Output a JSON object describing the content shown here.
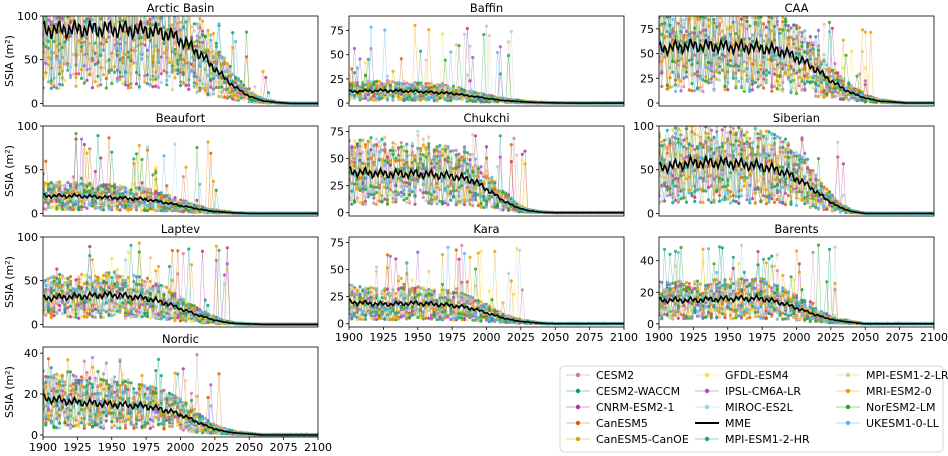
{
  "colors": {
    "CESM2": "#cc79a7",
    "CESM2-WACCM": "#009e73",
    "CNRM-ESM2-1": "#b0308a",
    "CanESM5": "#d55e00",
    "CanESM5-CanOE": "#e69f00",
    "GFDL-ESM4": "#f0e442",
    "IPSL-CM6A-LR": "#a050c8",
    "MIROC-ES2L": "#9fd0e0",
    "MME": "#000000",
    "MPI-ESM1-2-HR": "#17a08a",
    "MPI-ESM1-2-LR": "#e8c090",
    "MRI-ESM2-0": "#e69f00",
    "NorESM2-LM": "#2ca02c",
    "UKESM1-0-LL": "#56b4e9"
  },
  "chart_data": [
    {
      "type": "line",
      "title": "Arctic Basin",
      "ylabel": "SSIA (m²)",
      "xlim": [
        1900,
        2100
      ],
      "ylim": [
        -3,
        100
      ],
      "yticks": [
        0,
        50,
        100
      ],
      "xticks": [],
      "mme": {
        "x": [
          1900,
          1925,
          1950,
          1975,
          1990,
          2000,
          2010,
          2020,
          2030,
          2040,
          2050,
          2060,
          2070,
          2080,
          2100
        ],
        "y": [
          84,
          85,
          85,
          84,
          80,
          73,
          62,
          48,
          32,
          18,
          8,
          3,
          1,
          0,
          0
        ]
      }
    },
    {
      "type": "line",
      "title": "Baffin",
      "ylabel": "",
      "xlim": [
        1900,
        2100
      ],
      "ylim": [
        -3,
        90
      ],
      "yticks": [
        0,
        25,
        50,
        75
      ],
      "xticks": [],
      "mme": {
        "x": [
          1900,
          1925,
          1950,
          1975,
          1990,
          2000,
          2010,
          2020,
          2030,
          2040,
          2060,
          2100
        ],
        "y": [
          12,
          13,
          12,
          10,
          7,
          5,
          3,
          2,
          1,
          0.5,
          0,
          0
        ]
      }
    },
    {
      "type": "line",
      "title": "CAA",
      "ylabel": "",
      "xlim": [
        1900,
        2100
      ],
      "ylim": [
        -3,
        88
      ],
      "yticks": [
        0,
        25,
        50,
        75
      ],
      "xticks": [],
      "mme": {
        "x": [
          1900,
          1925,
          1950,
          1975,
          1990,
          2000,
          2010,
          2020,
          2030,
          2040,
          2050,
          2060,
          2070,
          2080,
          2100
        ],
        "y": [
          55,
          58,
          57,
          56,
          52,
          46,
          38,
          28,
          18,
          10,
          5,
          2,
          1,
          0,
          0
        ]
      }
    },
    {
      "type": "line",
      "title": "Beaufort",
      "ylabel": "SSIA (m²)",
      "xlim": [
        1900,
        2100
      ],
      "ylim": [
        -3,
        100
      ],
      "yticks": [
        0,
        50,
        100
      ],
      "xticks": [],
      "mme": {
        "x": [
          1900,
          1925,
          1950,
          1975,
          1990,
          2000,
          2010,
          2020,
          2030,
          2040,
          2050,
          2100
        ],
        "y": [
          20,
          20,
          18,
          16,
          12,
          9,
          6,
          3,
          1.5,
          0.5,
          0,
          0
        ]
      }
    },
    {
      "type": "line",
      "title": "Chukchi",
      "ylabel": "",
      "xlim": [
        1900,
        2100
      ],
      "ylim": [
        -3,
        80
      ],
      "yticks": [
        0,
        25,
        50,
        75
      ],
      "xticks": [],
      "mme": {
        "x": [
          1900,
          1925,
          1950,
          1975,
          1990,
          2000,
          2010,
          2020,
          2030,
          2040,
          2050,
          2100
        ],
        "y": [
          38,
          36,
          36,
          34,
          30,
          22,
          13,
          6,
          2,
          0.5,
          0,
          0
        ]
      }
    },
    {
      "type": "line",
      "title": "Siberian",
      "ylabel": "",
      "xlim": [
        1900,
        2100
      ],
      "ylim": [
        -3,
        100
      ],
      "yticks": [
        0,
        50,
        100
      ],
      "xticks": [],
      "mme": {
        "x": [
          1900,
          1925,
          1950,
          1975,
          1990,
          2000,
          2010,
          2020,
          2030,
          2040,
          2050,
          2100
        ],
        "y": [
          52,
          58,
          58,
          54,
          48,
          40,
          30,
          18,
          8,
          2,
          0,
          0
        ]
      }
    },
    {
      "type": "line",
      "title": "Laptev",
      "ylabel": "SSIA (m²)",
      "xlim": [
        1900,
        2100
      ],
      "ylim": [
        -3,
        100
      ],
      "yticks": [
        0,
        50,
        100
      ],
      "xticks": [],
      "mme": {
        "x": [
          1900,
          1925,
          1950,
          1975,
          1990,
          2000,
          2010,
          2020,
          2030,
          2040,
          2050,
          2060,
          2100
        ],
        "y": [
          30,
          32,
          34,
          30,
          24,
          18,
          12,
          7,
          3,
          1,
          0.5,
          0,
          0
        ]
      }
    },
    {
      "type": "line",
      "title": "Kara",
      "ylabel": "",
      "xlim": [
        1900,
        2100
      ],
      "ylim": [
        -3,
        80
      ],
      "yticks": [
        0,
        25,
        50,
        75
      ],
      "xticks": [
        1900,
        1925,
        1950,
        1975,
        2000,
        2025,
        2050,
        2075,
        2100
      ],
      "mme": {
        "x": [
          1900,
          1925,
          1950,
          1975,
          1990,
          2000,
          2010,
          2020,
          2030,
          2040,
          2050,
          2100
        ],
        "y": [
          20,
          18,
          19,
          17,
          14,
          10,
          6,
          3,
          1.5,
          0.5,
          0,
          0
        ]
      }
    },
    {
      "type": "line",
      "title": "Barents",
      "ylabel": "",
      "xlim": [
        1900,
        2100
      ],
      "ylim": [
        -2,
        55
      ],
      "yticks": [
        0,
        20,
        40
      ],
      "xticks": [
        1900,
        1925,
        1950,
        1975,
        2000,
        2025,
        2050,
        2075,
        2100
      ],
      "mme": {
        "x": [
          1900,
          1925,
          1950,
          1975,
          1990,
          2000,
          2010,
          2020,
          2030,
          2040,
          2050,
          2100
        ],
        "y": [
          15,
          15,
          16,
          16,
          13,
          10,
          7,
          4,
          2,
          1,
          0,
          0
        ]
      }
    },
    {
      "type": "line",
      "title": "Nordic",
      "ylabel": "SSIA (m²)",
      "xlim": [
        1900,
        2100
      ],
      "ylim": [
        -1,
        43
      ],
      "yticks": [
        0,
        20,
        40
      ],
      "xticks": [
        1900,
        1925,
        1950,
        1975,
        2000,
        2025,
        2050,
        2075,
        2100
      ],
      "mme": {
        "x": [
          1900,
          1925,
          1950,
          1975,
          1990,
          2000,
          2010,
          2020,
          2030,
          2040,
          2050,
          2060,
          2100
        ],
        "y": [
          18,
          16,
          15,
          14,
          12,
          10,
          7,
          4,
          2,
          1,
          0.5,
          0,
          0
        ]
      }
    }
  ],
  "legend": [
    "CESM2",
    "CESM2-WACCM",
    "CNRM-ESM2-1",
    "CanESM5",
    "CanESM5-CanOE",
    "GFDL-ESM4",
    "IPSL-CM6A-LR",
    "MIROC-ES2L",
    "MME",
    "MPI-ESM1-2-HR",
    "MPI-ESM1-2-LR",
    "MRI-ESM2-0",
    "NorESM2-LM",
    "UKESM1-0-LL"
  ]
}
